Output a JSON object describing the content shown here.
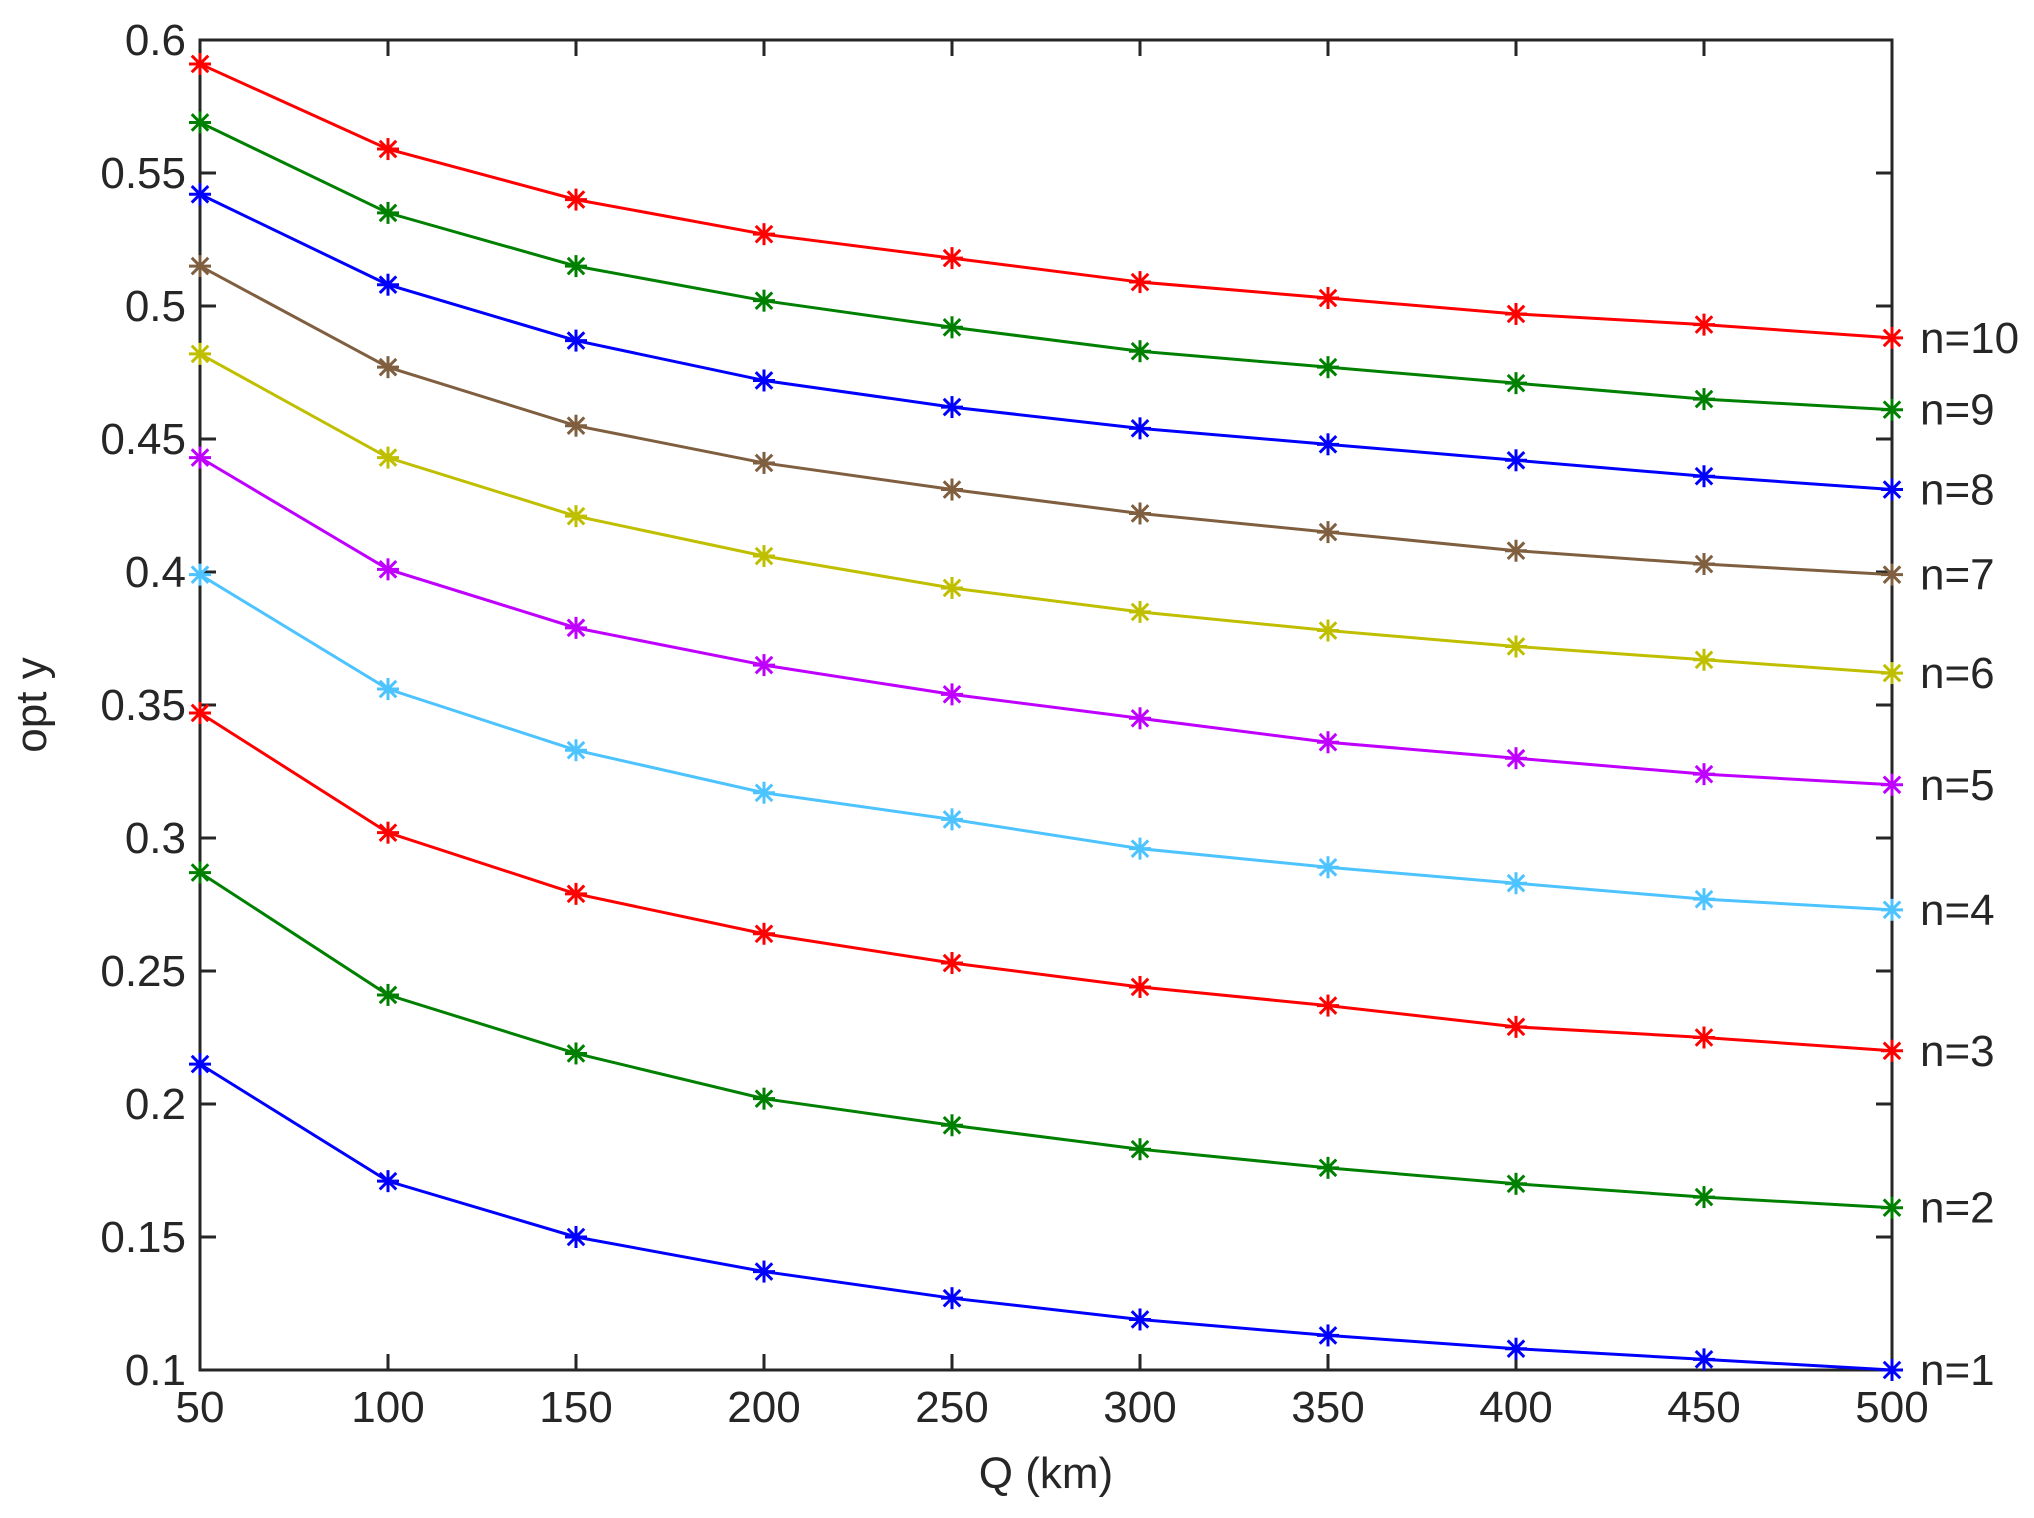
{
  "chart_data": {
    "type": "line",
    "title": "",
    "xlabel": "Q (km)",
    "ylabel": "opt y",
    "xlim": [
      50,
      500
    ],
    "ylim": [
      0.1,
      0.6
    ],
    "grid": false,
    "legend": "none (series labeled at right end of lines)",
    "marker": "asterisk",
    "x": [
      50,
      100,
      150,
      200,
      250,
      300,
      350,
      400,
      450,
      500
    ],
    "xticks": [
      "50",
      "100",
      "150",
      "200",
      "250",
      "300",
      "350",
      "400",
      "450",
      "500"
    ],
    "yticks": [
      "0.1",
      "0.15",
      "0.2",
      "0.25",
      "0.3",
      "0.35",
      "0.4",
      "0.45",
      "0.5",
      "0.55",
      "0.6"
    ],
    "series": [
      {
        "name": "n=1",
        "color": "#0000ff",
        "values": [
          0.215,
          0.171,
          0.15,
          0.137,
          0.127,
          0.119,
          0.113,
          0.108,
          0.104,
          0.1
        ]
      },
      {
        "name": "n=2",
        "color": "#008000",
        "values": [
          0.287,
          0.241,
          0.219,
          0.202,
          0.192,
          0.183,
          0.176,
          0.17,
          0.165,
          0.161
        ]
      },
      {
        "name": "n=3",
        "color": "#ff0000",
        "values": [
          0.347,
          0.302,
          0.279,
          0.264,
          0.253,
          0.244,
          0.237,
          0.229,
          0.225,
          0.22
        ]
      },
      {
        "name": "n=4",
        "color": "#4dc3ff",
        "values": [
          0.399,
          0.356,
          0.333,
          0.317,
          0.307,
          0.296,
          0.289,
          0.283,
          0.277,
          0.273
        ]
      },
      {
        "name": "n=5",
        "color": "#bf00ff",
        "values": [
          0.443,
          0.401,
          0.379,
          0.365,
          0.354,
          0.345,
          0.336,
          0.33,
          0.324,
          0.32
        ]
      },
      {
        "name": "n=6",
        "color": "#bfbf00",
        "values": [
          0.482,
          0.443,
          0.421,
          0.406,
          0.394,
          0.385,
          0.378,
          0.372,
          0.367,
          0.362
        ]
      },
      {
        "name": "n=7",
        "color": "#7f5f3f",
        "values": [
          0.515,
          0.477,
          0.455,
          0.441,
          0.431,
          0.422,
          0.415,
          0.408,
          0.403,
          0.399
        ]
      },
      {
        "name": "n=8",
        "color": "#0000ff",
        "values": [
          0.542,
          0.508,
          0.487,
          0.472,
          0.462,
          0.454,
          0.448,
          0.442,
          0.436,
          0.431
        ]
      },
      {
        "name": "n=9",
        "color": "#008000",
        "values": [
          0.569,
          0.535,
          0.515,
          0.502,
          0.492,
          0.483,
          0.477,
          0.471,
          0.465,
          0.461
        ]
      },
      {
        "name": "n=10",
        "color": "#ff0000",
        "values": [
          0.591,
          0.559,
          0.54,
          0.527,
          0.518,
          0.509,
          0.503,
          0.497,
          0.493,
          0.488
        ]
      }
    ]
  }
}
